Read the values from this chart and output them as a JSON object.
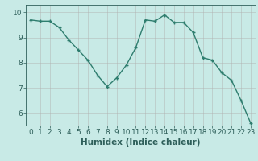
{
  "x": [
    0,
    1,
    2,
    3,
    4,
    5,
    6,
    7,
    8,
    9,
    10,
    11,
    12,
    13,
    14,
    15,
    16,
    17,
    18,
    19,
    20,
    21,
    22,
    23
  ],
  "y": [
    9.7,
    9.65,
    9.65,
    9.4,
    8.9,
    8.5,
    8.1,
    7.5,
    7.05,
    7.4,
    7.9,
    8.6,
    9.7,
    9.65,
    9.9,
    9.6,
    9.6,
    9.2,
    8.2,
    8.1,
    7.6,
    7.3,
    6.5,
    5.6
  ],
  "line_color": "#2e7d6e",
  "marker": "+",
  "marker_size": 3,
  "bg_color": "#c8eae6",
  "grid_color": "#b0b0b0",
  "xlabel": "Humidex (Indice chaleur)",
  "xlim": [
    -0.5,
    23.5
  ],
  "ylim": [
    5.5,
    10.3
  ],
  "yticks": [
    6,
    7,
    8,
    9,
    10
  ],
  "xticks": [
    0,
    1,
    2,
    3,
    4,
    5,
    6,
    7,
    8,
    9,
    10,
    11,
    12,
    13,
    14,
    15,
    16,
    17,
    18,
    19,
    20,
    21,
    22,
    23
  ],
  "font_color": "#2e5f5a",
  "tick_fontsize": 6.5,
  "label_fontsize": 7.5,
  "line_width": 1.0,
  "markeredgewidth": 1.0
}
